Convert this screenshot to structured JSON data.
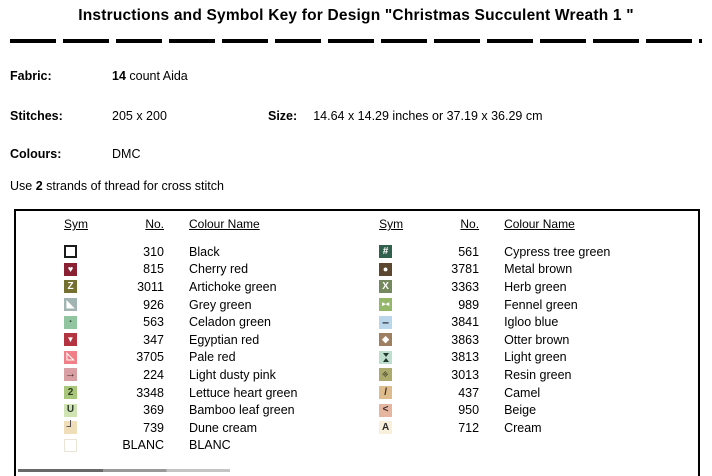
{
  "title": "Instructions and Symbol Key for Design \"Christmas Succulent Wreath 1 \"",
  "info": {
    "fabric": {
      "label": "Fabric:",
      "count": "14",
      "rest": " count Aida"
    },
    "stitches": {
      "label": "Stitches:",
      "value": "205 x 200"
    },
    "size": {
      "label": "Size:",
      "value": "14.64 x 14.29 inches or 37.19 x 36.29 cm"
    },
    "colours": {
      "label": "Colours:",
      "value": "DMC"
    },
    "strands": {
      "prefix": "Use ",
      "bold": "2",
      "suffix": " strands of thread for cross stitch"
    }
  },
  "table": {
    "headers": [
      "Sym",
      "No.",
      "Colour Name"
    ],
    "left_rows": [
      {
        "no": "310",
        "name": "Black",
        "sym": {
          "icon": "open-square",
          "bg": "#FFFFFF",
          "border": "#1A1A1A",
          "bw": 2,
          "glyph": "",
          "fg": "#000000"
        }
      },
      {
        "no": "815",
        "name": "Cherry red",
        "sym": {
          "icon": "heart",
          "bg": "#8C2033",
          "glyph": "♥",
          "fg": "#FFFFFF",
          "fs": 9
        }
      },
      {
        "no": "3011",
        "name": "Artichoke green",
        "sym": {
          "icon": "letter-z",
          "bg": "#75702F",
          "glyph": "Z",
          "fg": "#FFFFFF",
          "fs": 10
        }
      },
      {
        "no": "926",
        "name": "Grey green",
        "sym": {
          "icon": "triangle-lower-left",
          "bg": "#A2B4B2",
          "glyph": "◣",
          "fg": "#FFFFFF",
          "fs": 10
        }
      },
      {
        "no": "563",
        "name": "Celadon green",
        "sym": {
          "icon": "small-dot",
          "bg": "#90C5A0",
          "glyph": "▪",
          "fg": "#26382C",
          "fs": 6
        }
      },
      {
        "no": "347",
        "name": "Egyptian red",
        "sym": {
          "icon": "triangle-down",
          "bg": "#B43340",
          "glyph": "▼",
          "fg": "#FFFFFF",
          "fs": 8
        }
      },
      {
        "no": "3705",
        "name": "Pale red",
        "sym": {
          "icon": "triangle-outline",
          "bg": "#F07F87",
          "glyph": "◺",
          "fg": "#FFFFFF",
          "fs": 10
        }
      },
      {
        "no": "224",
        "name": "Light dusty pink",
        "sym": {
          "icon": "arrow-right",
          "bg": "#D8A0A3",
          "glyph": "→",
          "fg": "#43282A",
          "fs": 11
        }
      },
      {
        "no": "3348",
        "name": "Lettuce heart green",
        "sym": {
          "icon": "digit-2",
          "bg": "#A9C77A",
          "glyph": "2",
          "fg": "#2B3A1C",
          "fs": 10
        }
      },
      {
        "no": "369",
        "name": "Bamboo leaf green",
        "sym": {
          "icon": "letter-u",
          "bg": "#CFE3B3",
          "glyph": "U",
          "fg": "#2C3A2C",
          "fs": 10
        }
      },
      {
        "no": "739",
        "name": "Dune cream",
        "sym": {
          "icon": "corner-bracket",
          "bg": "#F0DEB8",
          "glyph": "┘",
          "fg": "#2B2B3A",
          "fs": 11
        }
      },
      {
        "no": "BLANC",
        "name": "BLANC",
        "sym": {
          "icon": "blank-square",
          "bg": "#FFFFFF",
          "border": "#E9E4D6",
          "bw": 1,
          "glyph": "",
          "fg": "#000000"
        }
      }
    ],
    "right_rows": [
      {
        "no": "561",
        "name": "Cypress tree green",
        "sym": {
          "icon": "hash",
          "bg": "#31604E",
          "glyph": "#",
          "fg": "#FFFFFF",
          "fs": 10
        }
      },
      {
        "no": "3781",
        "name": "Metal brown",
        "sym": {
          "icon": "filled-circle",
          "bg": "#5C4830",
          "glyph": "●",
          "fg": "#FFFFFF",
          "fs": 9
        }
      },
      {
        "no": "3363",
        "name": "Herb green",
        "sym": {
          "icon": "letter-x",
          "bg": "#74895D",
          "glyph": "X",
          "fg": "#FFFFFF",
          "fs": 10
        }
      },
      {
        "no": "989",
        "name": "Fennel green",
        "sym": {
          "icon": "double-triangle",
          "bg": "#95B76A",
          "glyph": "▸◂",
          "fg": "#FFFFFF",
          "fs": 7
        }
      },
      {
        "no": "3841",
        "name": "Igloo blue",
        "sym": {
          "icon": "dash",
          "bg": "#B9D6EB",
          "glyph": "–",
          "fg": "#2B2B3A",
          "fs": 12
        }
      },
      {
        "no": "3863",
        "name": "Otter brown",
        "sym": {
          "icon": "diamond",
          "bg": "#9E7F62",
          "glyph": "◆",
          "fg": "#FFFFFF",
          "fs": 9
        }
      },
      {
        "no": "3813",
        "name": "Light green",
        "sym": {
          "icon": "hourglass",
          "bg": "#BEDFCD",
          "glyph": "",
          "fg": "#223830",
          "cssglass": true
        }
      },
      {
        "no": "3013",
        "name": "Resin green",
        "sym": {
          "icon": "triple-slash",
          "bg": "#ACAA6C",
          "glyph": "≡",
          "fg": "#2B2B1C",
          "fs": 9,
          "rot": -45
        }
      },
      {
        "no": "437",
        "name": "Camel",
        "sym": {
          "icon": "slash",
          "bg": "#DFBC8D",
          "glyph": "/",
          "fg": "#3A2B1C",
          "fs": 10
        }
      },
      {
        "no": "950",
        "name": "Beige",
        "sym": {
          "icon": "less-than",
          "bg": "#E5B5A0",
          "glyph": "<",
          "fg": "#3A2B2B",
          "fs": 10
        }
      },
      {
        "no": "712",
        "name": "Cream",
        "sym": {
          "icon": "letter-a",
          "bg": "#F8F0DA",
          "glyph": "A",
          "fg": "#2B2B2B",
          "fs": 10
        }
      }
    ]
  }
}
